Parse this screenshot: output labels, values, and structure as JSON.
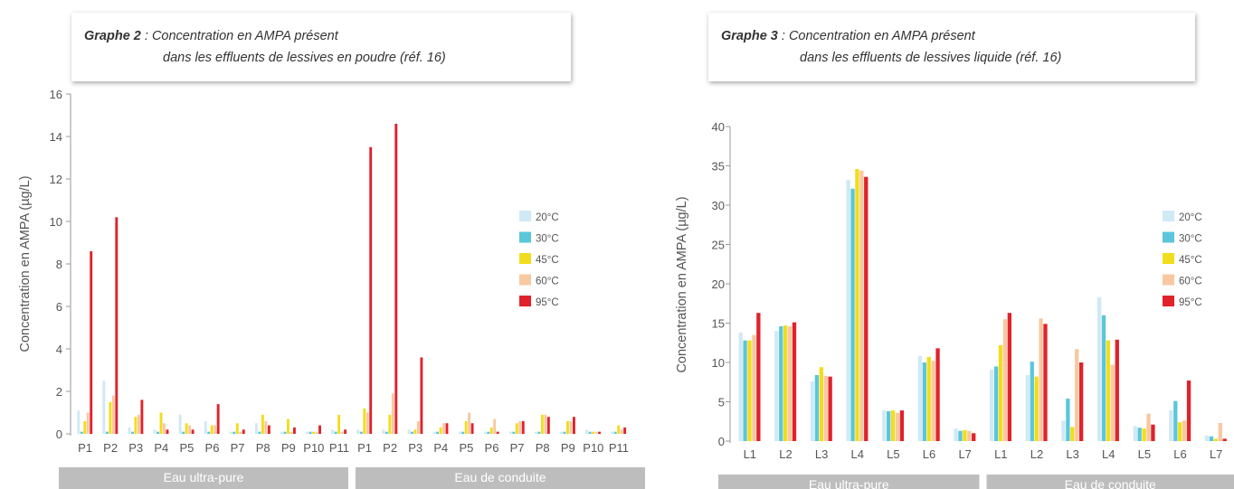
{
  "charts": [
    {
      "title_label": "Graphe 2",
      "title_line1": " : Concentration en AMPA présent",
      "title_line2": "dans les effluents de lessives en poudre (réf. 16)"
    },
    {
      "title_label": "Graphe 3",
      "title_line1": " : Concentration en AMPA présent",
      "title_line2": "dans les effluents de lessives liquide (réf. 16)"
    }
  ],
  "colors": {
    "20°C": "#cfe9f5",
    "30°C": "#5bc6da",
    "45°C": "#f1dd1d",
    "60°C": "#f8c8a0",
    "95°C": "#e0222b",
    "axis": "#999999",
    "group_band": "#bdbdbd"
  },
  "chart_data": [
    {
      "type": "bar",
      "title": "Graphe 2 : Concentration en AMPA présent dans les effluents de lessives en poudre (réf. 16)",
      "ylabel": "Concentration en AMPA (µg/L)",
      "ylim": [
        0,
        16
      ],
      "yticks": [
        0,
        2,
        4,
        6,
        8,
        10,
        12,
        14,
        16
      ],
      "legend_position": "right",
      "groups": [
        "Eau ultra-pure",
        "Eau de conduite"
      ],
      "categories": [
        "P1",
        "P2",
        "P3",
        "P4",
        "P5",
        "P6",
        "P7",
        "P8",
        "P9",
        "P10",
        "P11",
        "P1",
        "P2",
        "P3",
        "P4",
        "P5",
        "P6",
        "P7",
        "P8",
        "P9",
        "P10",
        "P11"
      ],
      "series": [
        {
          "name": "20°C",
          "values": [
            1.1,
            2.5,
            0.3,
            0.2,
            0.9,
            0.6,
            0.1,
            0.5,
            0.1,
            0.1,
            0.2,
            0.2,
            0.2,
            0.2,
            0.1,
            0.1,
            0.1,
            0.1,
            0.1,
            0.1,
            0.2,
            0.1
          ]
        },
        {
          "name": "30°C",
          "values": [
            0.1,
            0.1,
            0.1,
            0.1,
            0.1,
            0.1,
            0.1,
            0.1,
            0.1,
            0.1,
            0.1,
            0.1,
            0.1,
            0.1,
            0.1,
            0.1,
            0.1,
            0.1,
            0.1,
            0.1,
            0.1,
            0.1
          ]
        },
        {
          "name": "45°C",
          "values": [
            0.6,
            1.5,
            0.8,
            1.0,
            0.5,
            0.4,
            0.5,
            0.9,
            0.7,
            0.1,
            0.9,
            1.2,
            0.9,
            0.2,
            0.3,
            0.6,
            0.3,
            0.5,
            0.9,
            0.6,
            0.1,
            0.4
          ]
        },
        {
          "name": "60°C",
          "values": [
            1.0,
            1.8,
            0.9,
            0.5,
            0.4,
            0.4,
            0.1,
            0.6,
            0.1,
            0.1,
            0.1,
            1.0,
            1.9,
            0.6,
            0.5,
            1.0,
            0.7,
            0.6,
            0.9,
            0.6,
            0.1,
            0.2
          ]
        },
        {
          "name": "95°C",
          "values": [
            8.6,
            10.2,
            1.6,
            0.2,
            0.2,
            1.4,
            0.2,
            0.4,
            0.3,
            0.4,
            0.2,
            13.5,
            14.6,
            3.6,
            0.5,
            0.5,
            0.1,
            0.6,
            0.8,
            0.8,
            0.1,
            0.3
          ]
        }
      ]
    },
    {
      "type": "bar",
      "title": "Graphe 3 : Concentration en AMPA présent dans les effluents de lessives liquide (réf. 16)",
      "ylabel": "Concentration en AMPA (µg/L)",
      "ylim": [
        0,
        40
      ],
      "yticks": [
        0,
        5,
        10,
        15,
        20,
        25,
        30,
        35,
        40
      ],
      "legend_position": "right",
      "groups": [
        "Eau ultra-pure",
        "Eau de conduite"
      ],
      "categories": [
        "L1",
        "L2",
        "L3",
        "L4",
        "L5",
        "L6",
        "L7",
        "L1",
        "L2",
        "L3",
        "L4",
        "L5",
        "L6",
        "L7"
      ],
      "series": [
        {
          "name": "20°C",
          "values": [
            13.8,
            14.0,
            7.6,
            33.2,
            3.9,
            10.8,
            1.6,
            9.1,
            8.4,
            2.6,
            18.3,
            1.9,
            3.9,
            0.7
          ]
        },
        {
          "name": "30°C",
          "values": [
            12.8,
            14.6,
            8.4,
            32.1,
            3.8,
            10.0,
            1.3,
            9.5,
            10.1,
            5.4,
            16.0,
            1.7,
            5.1,
            0.6
          ]
        },
        {
          "name": "45°C",
          "values": [
            12.8,
            14.7,
            9.4,
            34.6,
            3.9,
            10.7,
            1.4,
            12.2,
            8.2,
            1.8,
            12.8,
            1.6,
            2.4,
            0.3
          ]
        },
        {
          "name": "60°C",
          "values": [
            13.5,
            14.6,
            8.3,
            34.4,
            3.6,
            10.2,
            1.3,
            15.5,
            15.6,
            11.7,
            9.7,
            3.5,
            2.6,
            2.3
          ]
        },
        {
          "name": "95°C",
          "values": [
            16.3,
            15.1,
            8.2,
            33.6,
            3.9,
            11.8,
            1.0,
            16.3,
            14.9,
            10.0,
            12.9,
            2.1,
            7.7,
            0.3
          ]
        }
      ]
    }
  ]
}
